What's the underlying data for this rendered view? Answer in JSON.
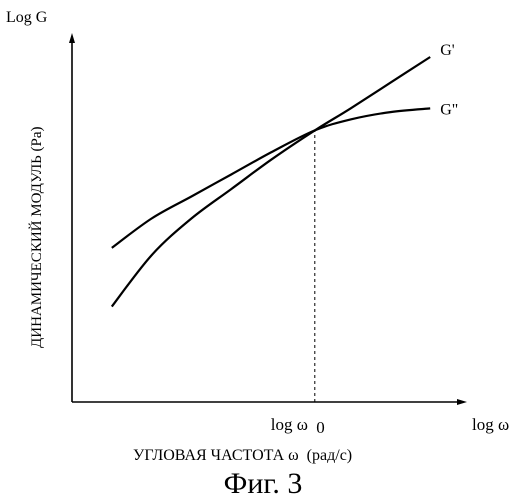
{
  "chart_data": {
    "type": "line",
    "title": "",
    "y_axis_title": "Log G",
    "y_axis_label": "ДИНАМИЧЕСКИЙ МОДУЛЬ (Pa)",
    "x_axis_end_label": "log ω",
    "x_axis_label": "УГЛОВАЯ ЧАСТОТА ω  (рад/с)",
    "x_marker_label": "log ω",
    "x_marker_subscript": "0",
    "x_marker_value": 0.61,
    "xlim": [
      0,
      1
    ],
    "ylim": [
      0,
      1
    ],
    "grid": false,
    "x": [
      0.1,
      0.2,
      0.3,
      0.4,
      0.5,
      0.61,
      0.7,
      0.8,
      0.9
    ],
    "series": [
      {
        "name": "G'",
        "values": [
          0.26,
          0.4,
          0.5,
          0.58,
          0.66,
          0.74,
          0.8,
          0.87,
          0.94
        ]
      },
      {
        "name": "G\"",
        "values": [
          0.42,
          0.5,
          0.56,
          0.62,
          0.68,
          0.74,
          0.77,
          0.79,
          0.8
        ]
      }
    ]
  },
  "caption": "Фиг. 3"
}
